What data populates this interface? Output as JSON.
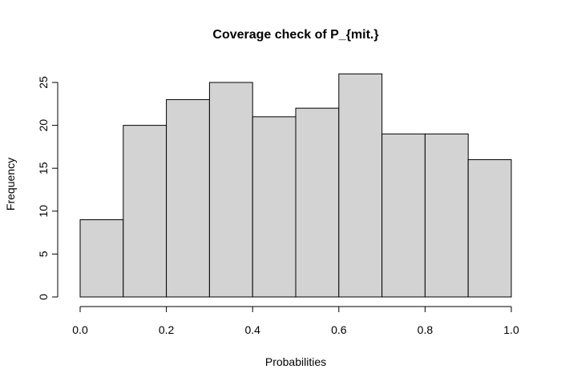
{
  "chart_data": {
    "type": "bar",
    "title": "Coverage check of P_{mit.}",
    "xlabel": "Probabilities",
    "ylabel": "Frequency",
    "bin_edges": [
      0.0,
      0.1,
      0.2,
      0.3,
      0.4,
      0.5,
      0.6,
      0.7,
      0.8,
      0.9,
      1.0
    ],
    "values": [
      9,
      20,
      23,
      25,
      21,
      22,
      26,
      19,
      19,
      16
    ],
    "xlim": [
      0.0,
      1.0
    ],
    "ylim": [
      0,
      26
    ],
    "xticks": [
      0.0,
      0.2,
      0.4,
      0.6,
      0.8,
      1.0
    ],
    "xtick_labels": [
      "0.0",
      "0.2",
      "0.4",
      "0.6",
      "0.8",
      "1.0"
    ],
    "yticks": [
      0,
      5,
      10,
      15,
      20,
      25
    ],
    "ytick_labels": [
      "0",
      "5",
      "10",
      "15",
      "20",
      "25"
    ],
    "grid": false,
    "legend": "none",
    "bar_color": "#d3d3d3"
  }
}
